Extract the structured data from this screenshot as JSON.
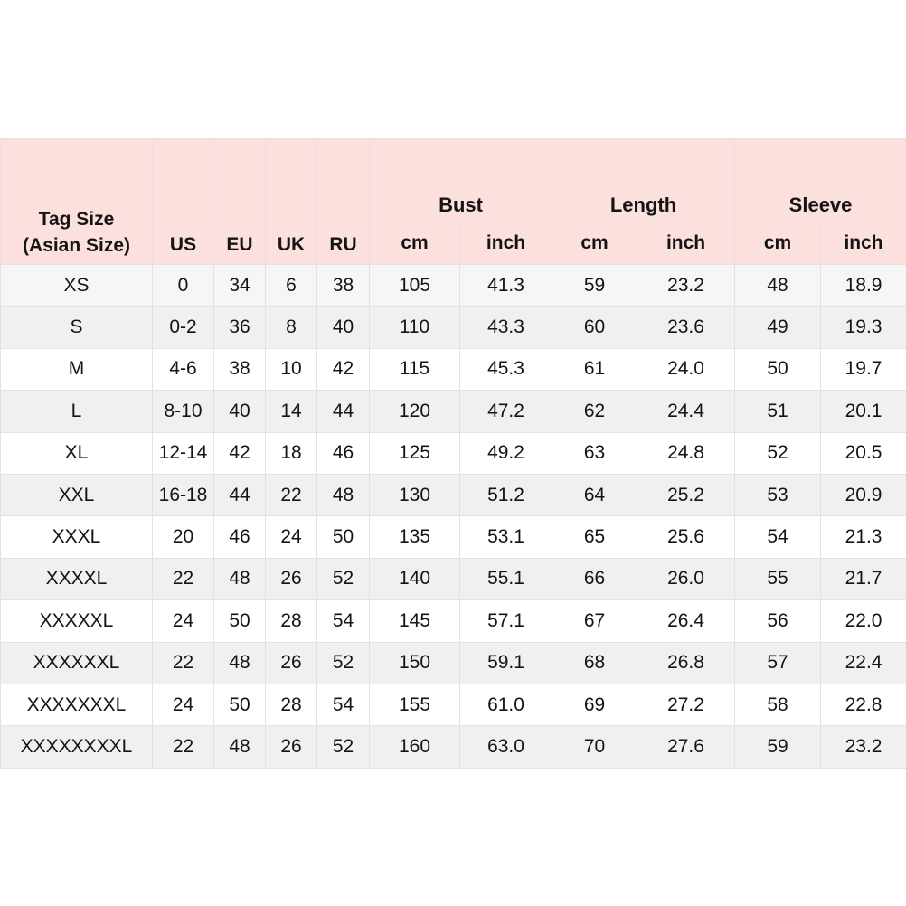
{
  "colors": {
    "header_bg": "#fbe0de",
    "stripe_row_bg": "#f0f0f0",
    "first_row_bg": "#f6f6f6",
    "grid_border": "#e2e2e2",
    "text": "#141414",
    "page_bg": "#ffffff"
  },
  "chart_data": {
    "type": "table",
    "header": {
      "tag_line1": "Tag Size",
      "tag_line2": "(Asian Size)",
      "flat_cols": [
        "US",
        "EU",
        "UK",
        "RU"
      ],
      "groups": [
        "Bust",
        "Length",
        "Sleeve"
      ],
      "sub_labels": [
        "cm",
        "inch"
      ]
    },
    "rows": [
      [
        "XS",
        "0",
        "34",
        "6",
        "38",
        "105",
        "41.3",
        "59",
        "23.2",
        "48",
        "18.9"
      ],
      [
        "S",
        "0-2",
        "36",
        "8",
        "40",
        "110",
        "43.3",
        "60",
        "23.6",
        "49",
        "19.3"
      ],
      [
        "M",
        "4-6",
        "38",
        "10",
        "42",
        "115",
        "45.3",
        "61",
        "24.0",
        "50",
        "19.7"
      ],
      [
        "L",
        "8-10",
        "40",
        "14",
        "44",
        "120",
        "47.2",
        "62",
        "24.4",
        "51",
        "20.1"
      ],
      [
        "XL",
        "12-14",
        "42",
        "18",
        "46",
        "125",
        "49.2",
        "63",
        "24.8",
        "52",
        "20.5"
      ],
      [
        "XXL",
        "16-18",
        "44",
        "22",
        "48",
        "130",
        "51.2",
        "64",
        "25.2",
        "53",
        "20.9"
      ],
      [
        "XXXL",
        "20",
        "46",
        "24",
        "50",
        "135",
        "53.1",
        "65",
        "25.6",
        "54",
        "21.3"
      ],
      [
        "XXXXL",
        "22",
        "48",
        "26",
        "52",
        "140",
        "55.1",
        "66",
        "26.0",
        "55",
        "21.7"
      ],
      [
        "XXXXXL",
        "24",
        "50",
        "28",
        "54",
        "145",
        "57.1",
        "67",
        "26.4",
        "56",
        "22.0"
      ],
      [
        "XXXXXXL",
        "22",
        "48",
        "26",
        "52",
        "150",
        "59.1",
        "68",
        "26.8",
        "57",
        "22.4"
      ],
      [
        "XXXXXXXL",
        "24",
        "50",
        "28",
        "54",
        "155",
        "61.0",
        "69",
        "27.2",
        "58",
        "22.8"
      ],
      [
        "XXXXXXXXL",
        "22",
        "48",
        "26",
        "52",
        "160",
        "63.0",
        "70",
        "27.6",
        "59",
        "23.2"
      ]
    ]
  }
}
